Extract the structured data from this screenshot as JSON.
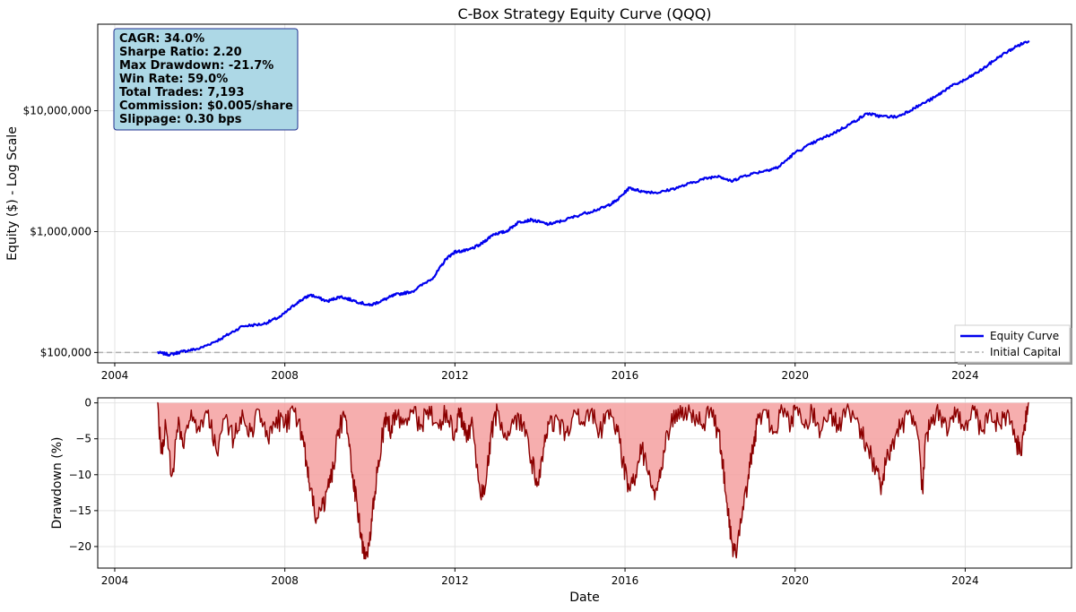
{
  "chart_data": [
    {
      "type": "line",
      "title": "C-Box Strategy Equity Curve (QQQ)",
      "xlabel": "",
      "ylabel": "Equity ($) - Log Scale",
      "yscale": "log",
      "xlim": [
        2003.6,
        2026.5
      ],
      "ylim": [
        82000,
        52000000
      ],
      "x_ticks": [
        {
          "value": 2004,
          "label": "2004"
        },
        {
          "value": 2008,
          "label": "2008"
        },
        {
          "value": 2012,
          "label": "2012"
        },
        {
          "value": 2016,
          "label": "2016"
        },
        {
          "value": 2020,
          "label": "2020"
        },
        {
          "value": 2024,
          "label": "2024"
        }
      ],
      "y_ticks": [
        {
          "value": 100000,
          "label": "$100,000"
        },
        {
          "value": 1000000,
          "label": "$1,000,000"
        },
        {
          "value": 10000000,
          "label": "$10,000,000"
        }
      ],
      "grid": true,
      "series": [
        {
          "name": "Equity Curve",
          "color": "#0000ee",
          "points": [
            [
              2005.0,
              100000
            ],
            [
              2005.3,
              96000
            ],
            [
              2005.6,
              102000
            ],
            [
              2006.0,
              108000
            ],
            [
              2006.5,
              130000
            ],
            [
              2007.0,
              165000
            ],
            [
              2007.5,
              172000
            ],
            [
              2007.9,
              198000
            ],
            [
              2008.3,
              260000
            ],
            [
              2008.6,
              300000
            ],
            [
              2009.0,
              265000
            ],
            [
              2009.3,
              290000
            ],
            [
              2009.6,
              270000
            ],
            [
              2010.0,
              245000
            ],
            [
              2010.3,
              270000
            ],
            [
              2010.6,
              300000
            ],
            [
              2011.0,
              320000
            ],
            [
              2011.5,
              420000
            ],
            [
              2011.8,
              600000
            ],
            [
              2012.0,
              680000
            ],
            [
              2012.3,
              700000
            ],
            [
              2012.6,
              780000
            ],
            [
              2012.9,
              950000
            ],
            [
              2013.2,
              1000000
            ],
            [
              2013.5,
              1200000
            ],
            [
              2013.8,
              1250000
            ],
            [
              2014.2,
              1150000
            ],
            [
              2014.5,
              1220000
            ],
            [
              2015.0,
              1400000
            ],
            [
              2015.5,
              1580000
            ],
            [
              2015.8,
              1800000
            ],
            [
              2016.1,
              2300000
            ],
            [
              2016.4,
              2150000
            ],
            [
              2016.8,
              2100000
            ],
            [
              2017.3,
              2350000
            ],
            [
              2017.8,
              2700000
            ],
            [
              2018.2,
              2900000
            ],
            [
              2018.5,
              2600000
            ],
            [
              2018.8,
              2900000
            ],
            [
              2019.3,
              3200000
            ],
            [
              2019.6,
              3400000
            ],
            [
              2020.0,
              4500000
            ],
            [
              2020.5,
              5600000
            ],
            [
              2020.9,
              6500000
            ],
            [
              2021.3,
              7800000
            ],
            [
              2021.7,
              9500000
            ],
            [
              2022.0,
              9000000
            ],
            [
              2022.4,
              8900000
            ],
            [
              2022.8,
              10500000
            ],
            [
              2023.3,
              13000000
            ],
            [
              2023.6,
              15500000
            ],
            [
              2024.0,
              18000000
            ],
            [
              2024.4,
              22000000
            ],
            [
              2024.8,
              28000000
            ],
            [
              2025.2,
              34000000
            ],
            [
              2025.5,
              38000000
            ]
          ]
        },
        {
          "name": "Initial Capital",
          "color": "#b0b0b0",
          "style": "dashed",
          "points": [
            [
              2003.6,
              100000
            ],
            [
              2026.5,
              100000
            ]
          ]
        }
      ],
      "legend": {
        "placement": "bottom-right",
        "entries": [
          {
            "label": "Equity Curve",
            "color": "#0000ee",
            "style": "solid"
          },
          {
            "label": "Initial Capital",
            "color": "#b0b0b0",
            "style": "dashed"
          }
        ]
      },
      "annotations": [
        "CAGR: 34.0%",
        "Sharpe Ratio: 2.20",
        "Max Drawdown: -21.7%",
        "Win Rate: 59.0%",
        "Total Trades: 7,193",
        "Commission: $0.005/share",
        "Slippage: 0.30 bps"
      ]
    },
    {
      "type": "area",
      "title": "",
      "xlabel": "Date",
      "ylabel": "Drawdown (%)",
      "xlim": [
        2003.6,
        2026.5
      ],
      "ylim": [
        -23,
        0.7
      ],
      "x_ticks": [
        {
          "value": 2004,
          "label": "2004"
        },
        {
          "value": 2008,
          "label": "2008"
        },
        {
          "value": 2012,
          "label": "2012"
        },
        {
          "value": 2016,
          "label": "2016"
        },
        {
          "value": 2020,
          "label": "2020"
        },
        {
          "value": 2024,
          "label": "2024"
        }
      ],
      "y_ticks": [
        {
          "value": 0,
          "label": "0"
        },
        {
          "value": -5,
          "label": "−5"
        },
        {
          "value": -10,
          "label": "−10"
        },
        {
          "value": -15,
          "label": "−15"
        },
        {
          "value": -20,
          "label": "−20"
        }
      ],
      "grid": true,
      "series": [
        {
          "name": "Drawdown",
          "line_color": "#8b0000",
          "fill_color": "#f4a0a0",
          "points": [
            [
              2005.0,
              0
            ],
            [
              2005.1,
              -7
            ],
            [
              2005.2,
              -3
            ],
            [
              2005.35,
              -10
            ],
            [
              2005.5,
              -2
            ],
            [
              2005.6,
              -6
            ],
            [
              2005.8,
              -1
            ],
            [
              2006.0,
              -4
            ],
            [
              2006.2,
              -1
            ],
            [
              2006.4,
              -7
            ],
            [
              2006.6,
              -2
            ],
            [
              2006.8,
              -5
            ],
            [
              2007.0,
              -1
            ],
            [
              2007.2,
              -4
            ],
            [
              2007.4,
              -1
            ],
            [
              2007.6,
              -5
            ],
            [
              2007.8,
              -2
            ],
            [
              2008.0,
              -3
            ],
            [
              2008.2,
              -1
            ],
            [
              2008.4,
              -4
            ],
            [
              2008.5,
              -8
            ],
            [
              2008.6,
              -12
            ],
            [
              2008.75,
              -16
            ],
            [
              2008.9,
              -14
            ],
            [
              2009.0,
              -12
            ],
            [
              2009.1,
              -10
            ],
            [
              2009.2,
              -6
            ],
            [
              2009.3,
              -3
            ],
            [
              2009.4,
              -2
            ],
            [
              2009.5,
              -5
            ],
            [
              2009.6,
              -10
            ],
            [
              2009.7,
              -14
            ],
            [
              2009.8,
              -19
            ],
            [
              2009.9,
              -21.7
            ],
            [
              2010.0,
              -18
            ],
            [
              2010.1,
              -13
            ],
            [
              2010.2,
              -8
            ],
            [
              2010.3,
              -4
            ],
            [
              2010.4,
              -2
            ],
            [
              2010.5,
              -4
            ],
            [
              2010.6,
              -1
            ],
            [
              2010.8,
              -3
            ],
            [
              2011.0,
              -1
            ],
            [
              2011.2,
              -3
            ],
            [
              2011.4,
              -0.5
            ],
            [
              2011.6,
              -3
            ],
            [
              2011.8,
              -1
            ],
            [
              2012.0,
              -4
            ],
            [
              2012.1,
              -1
            ],
            [
              2012.2,
              -3
            ],
            [
              2012.3,
              -5
            ],
            [
              2012.4,
              -2
            ],
            [
              2012.6,
              -13
            ],
            [
              2012.75,
              -10
            ],
            [
              2012.85,
              -4
            ],
            [
              2013.0,
              -1
            ],
            [
              2013.2,
              -5
            ],
            [
              2013.4,
              -2
            ],
            [
              2013.6,
              -3
            ],
            [
              2013.8,
              -8
            ],
            [
              2013.95,
              -11
            ],
            [
              2014.1,
              -6
            ],
            [
              2014.2,
              -3
            ],
            [
              2014.4,
              -2
            ],
            [
              2014.6,
              -4
            ],
            [
              2014.8,
              -1
            ],
            [
              2015.0,
              -3
            ],
            [
              2015.2,
              -1
            ],
            [
              2015.4,
              -4
            ],
            [
              2015.6,
              -1
            ],
            [
              2015.8,
              -3
            ],
            [
              2015.95,
              -8
            ],
            [
              2016.1,
              -12
            ],
            [
              2016.25,
              -10
            ],
            [
              2016.4,
              -6
            ],
            [
              2016.55,
              -10
            ],
            [
              2016.7,
              -13.5
            ],
            [
              2016.85,
              -9
            ],
            [
              2017.0,
              -4
            ],
            [
              2017.2,
              -1
            ],
            [
              2017.4,
              -2
            ],
            [
              2017.6,
              -1
            ],
            [
              2017.8,
              -3
            ],
            [
              2018.0,
              -1
            ],
            [
              2018.2,
              -4
            ],
            [
              2018.3,
              -8
            ],
            [
              2018.4,
              -14
            ],
            [
              2018.5,
              -19
            ],
            [
              2018.6,
              -21
            ],
            [
              2018.75,
              -16
            ],
            [
              2018.9,
              -10
            ],
            [
              2019.0,
              -6
            ],
            [
              2019.1,
              -3
            ],
            [
              2019.3,
              -1
            ],
            [
              2019.5,
              -4
            ],
            [
              2019.7,
              -1
            ],
            [
              2019.9,
              -3
            ],
            [
              2020.0,
              -1
            ],
            [
              2020.2,
              -3
            ],
            [
              2020.4,
              -1
            ],
            [
              2020.6,
              -4
            ],
            [
              2020.8,
              -1
            ],
            [
              2021.0,
              -3
            ],
            [
              2021.2,
              -1
            ],
            [
              2021.5,
              -3
            ],
            [
              2021.7,
              -6
            ],
            [
              2021.9,
              -9
            ],
            [
              2022.0,
              -11.5
            ],
            [
              2022.15,
              -8
            ],
            [
              2022.3,
              -5
            ],
            [
              2022.5,
              -3
            ],
            [
              2022.7,
              -1
            ],
            [
              2022.9,
              -5
            ],
            [
              2023.0,
              -12.3
            ],
            [
              2023.05,
              -6
            ],
            [
              2023.2,
              -2
            ],
            [
              2023.4,
              -1
            ],
            [
              2023.6,
              -4
            ],
            [
              2023.8,
              -1
            ],
            [
              2024.0,
              -3
            ],
            [
              2024.2,
              -1
            ],
            [
              2024.4,
              -4
            ],
            [
              2024.6,
              -1
            ],
            [
              2024.8,
              -3
            ],
            [
              2025.0,
              -1
            ],
            [
              2025.2,
              -5
            ],
            [
              2025.3,
              -7
            ],
            [
              2025.4,
              -3
            ],
            [
              2025.5,
              0
            ]
          ]
        }
      ]
    }
  ]
}
